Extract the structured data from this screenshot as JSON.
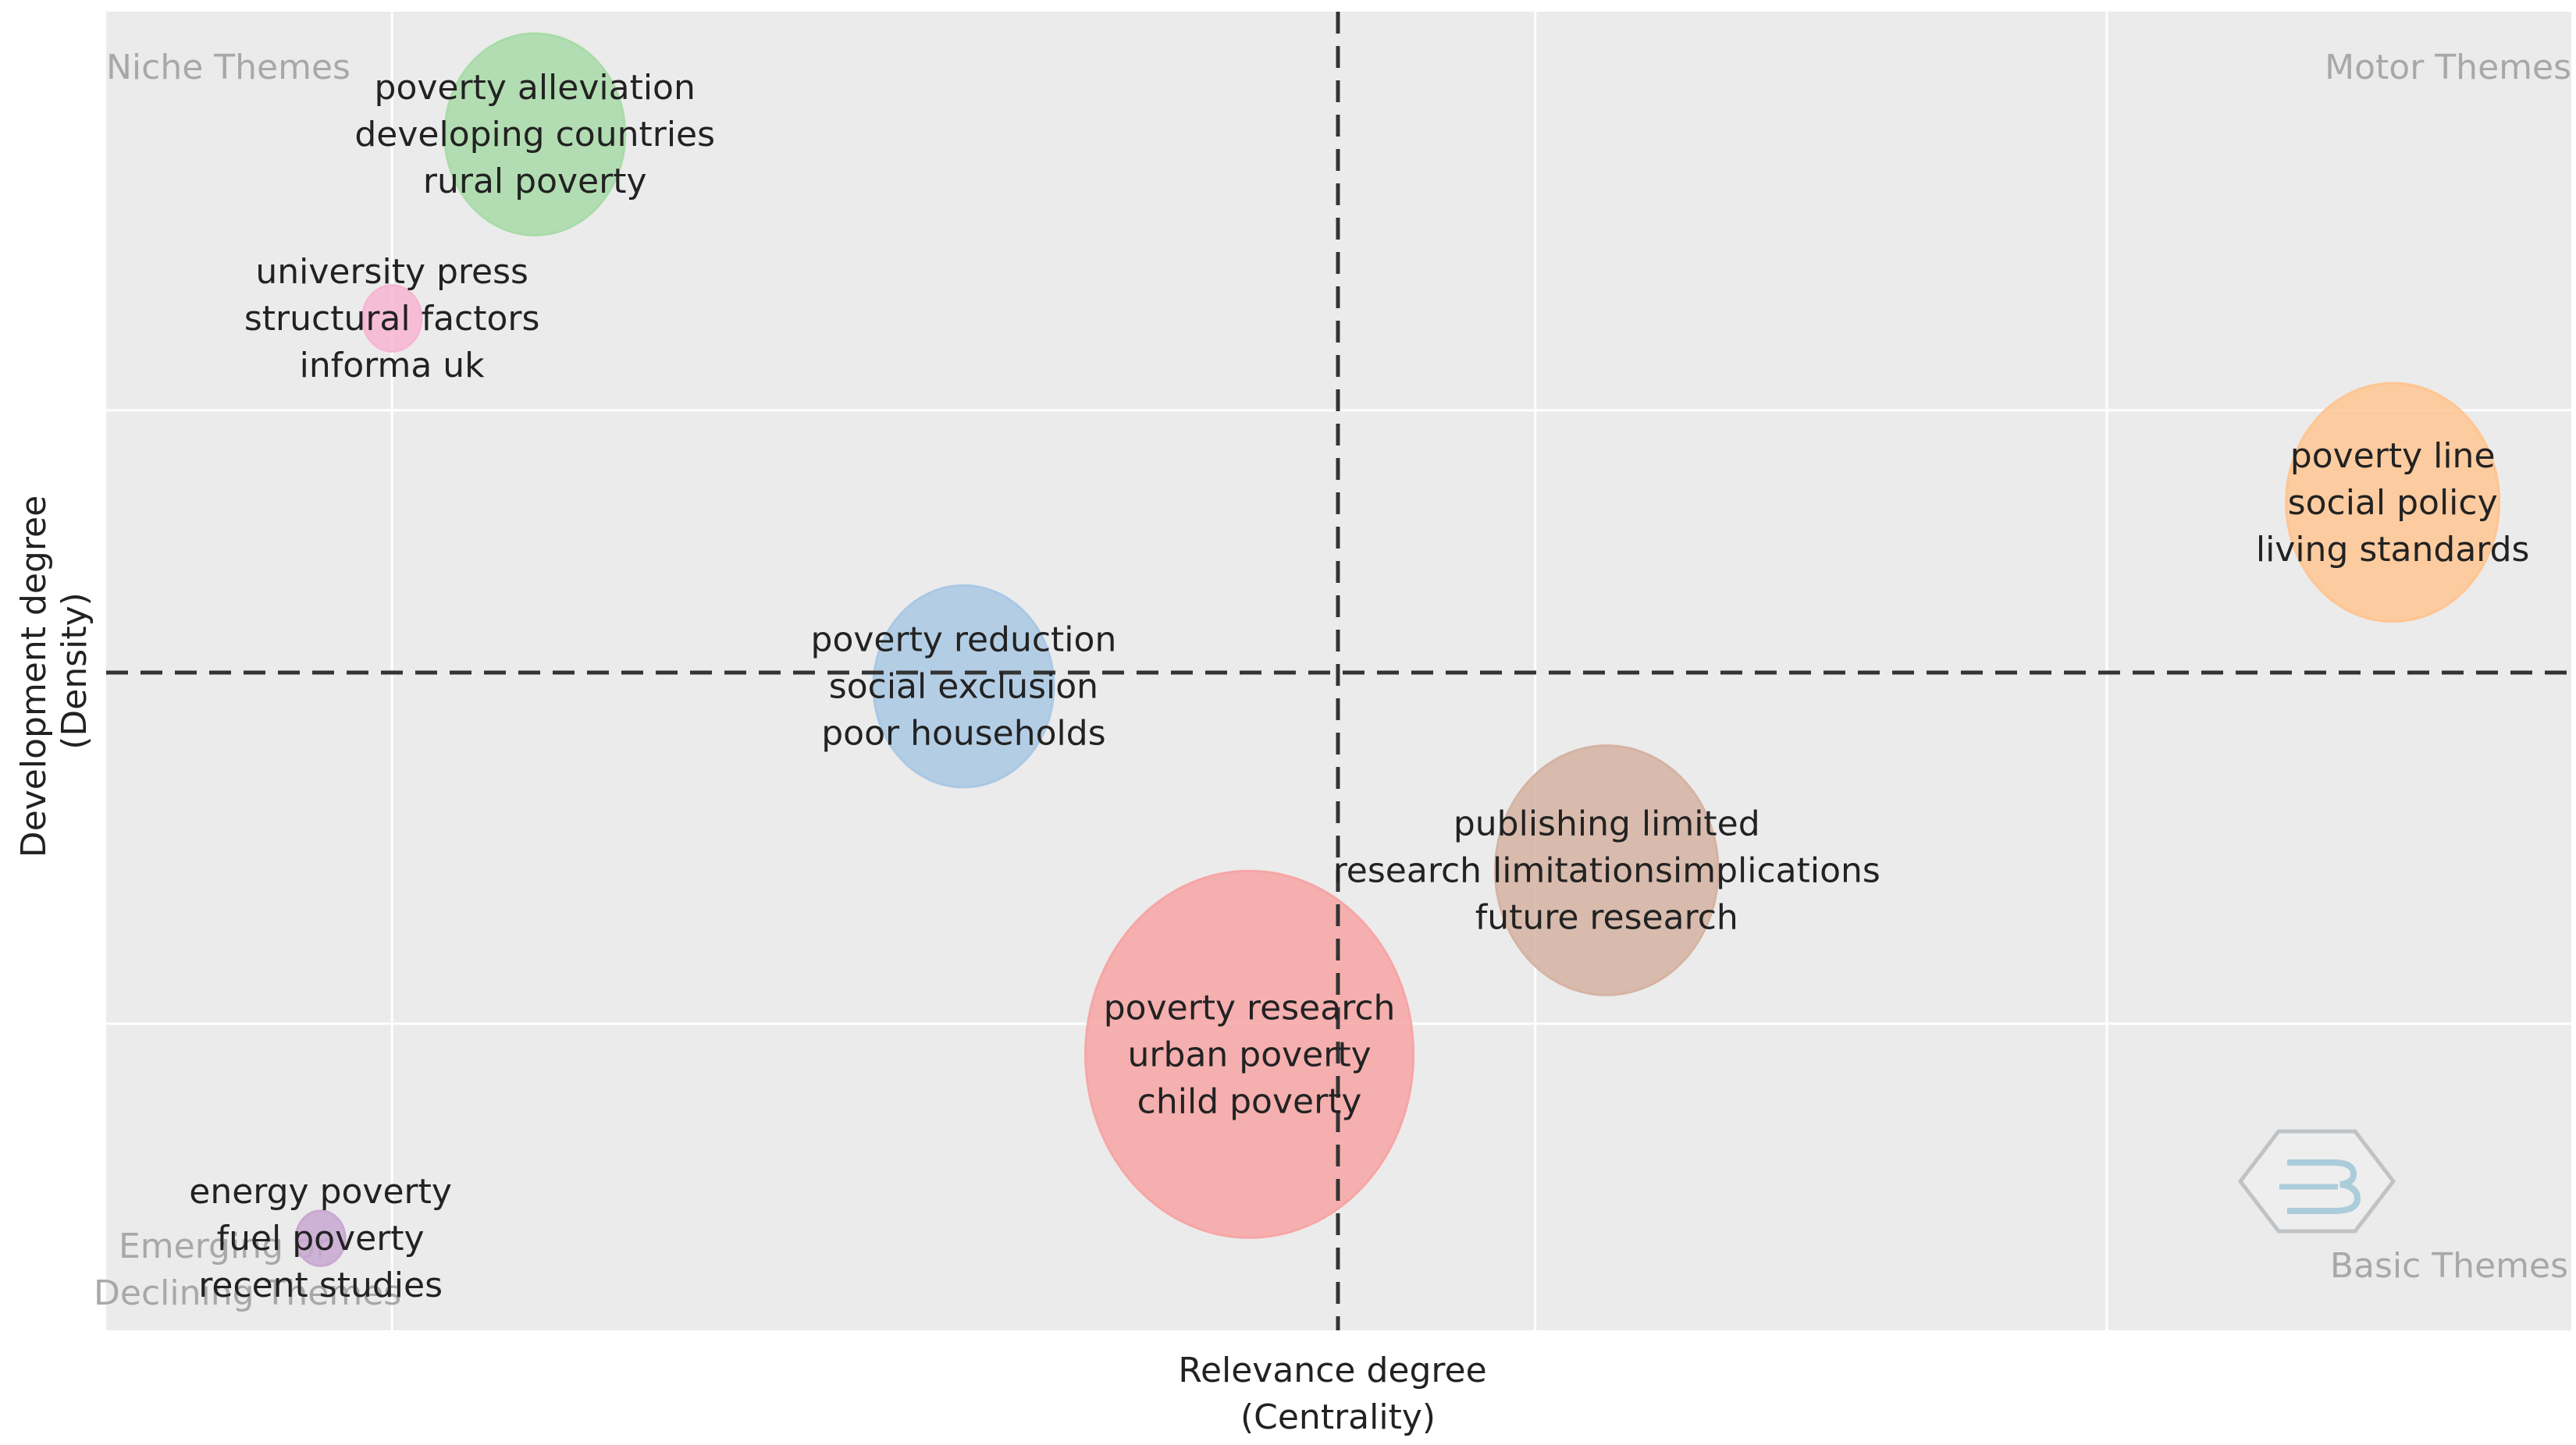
{
  "chart_data": {
    "type": "scatter",
    "title": "",
    "xlabel": [
      "Relevance degree",
      "(Centrality)"
    ],
    "ylabel": [
      "Development degree",
      "(Density)"
    ],
    "grid": true,
    "legend": "none",
    "quadrants": {
      "top_left": [
        "Niche Themes"
      ],
      "top_right": [
        "Motor Themes"
      ],
      "bottom_left": [
        "Emerging or",
        "Declining Themes"
      ],
      "bottom_right": [
        "Basic Themes"
      ]
    },
    "points": [
      {
        "x": 0.06,
        "y": 0.89,
        "size": 0.55,
        "color": "#a8dba8",
        "labels": [
          "poverty alleviation",
          "developing countries",
          "rural poverty"
        ]
      },
      {
        "x": 0.04,
        "y": 0.83,
        "size": 0.18,
        "color": "#f7b6d2",
        "labels": [
          "university press",
          "structural factors",
          "informa uk"
        ]
      },
      {
        "x": 0.32,
        "y": 0.77,
        "size": 0.65,
        "color": "#ffc592",
        "labels": [
          "poverty line",
          "social policy",
          "living standards"
        ]
      },
      {
        "x": 0.12,
        "y": 0.71,
        "size": 0.55,
        "color": "#a9c8e4",
        "labels": [
          "poverty reduction",
          "social exclusion",
          "poor households"
        ]
      },
      {
        "x": 0.21,
        "y": 0.65,
        "size": 0.68,
        "color": "#d5b3a2",
        "labels": [
          "publishing limited",
          "research limitationsimplications",
          "future research"
        ]
      },
      {
        "x": 0.16,
        "y": 0.59,
        "size": 1.0,
        "color": "#f7a5a5",
        "labels": [
          "poverty research",
          "urban poverty",
          "child poverty"
        ]
      },
      {
        "x": 0.03,
        "y": 0.53,
        "size": 0.15,
        "color": "#c9a8d2",
        "labels": [
          "energy poverty",
          "fuel poverty",
          "recent studies"
        ]
      }
    ],
    "xlim": [
      0.0,
      0.345
    ],
    "ylim": [
      0.5,
      0.93
    ],
    "x_divider": 0.12,
    "y_divider": 0.71
  },
  "icons": {
    "watermark": "bibliometrix-logo-icon"
  }
}
